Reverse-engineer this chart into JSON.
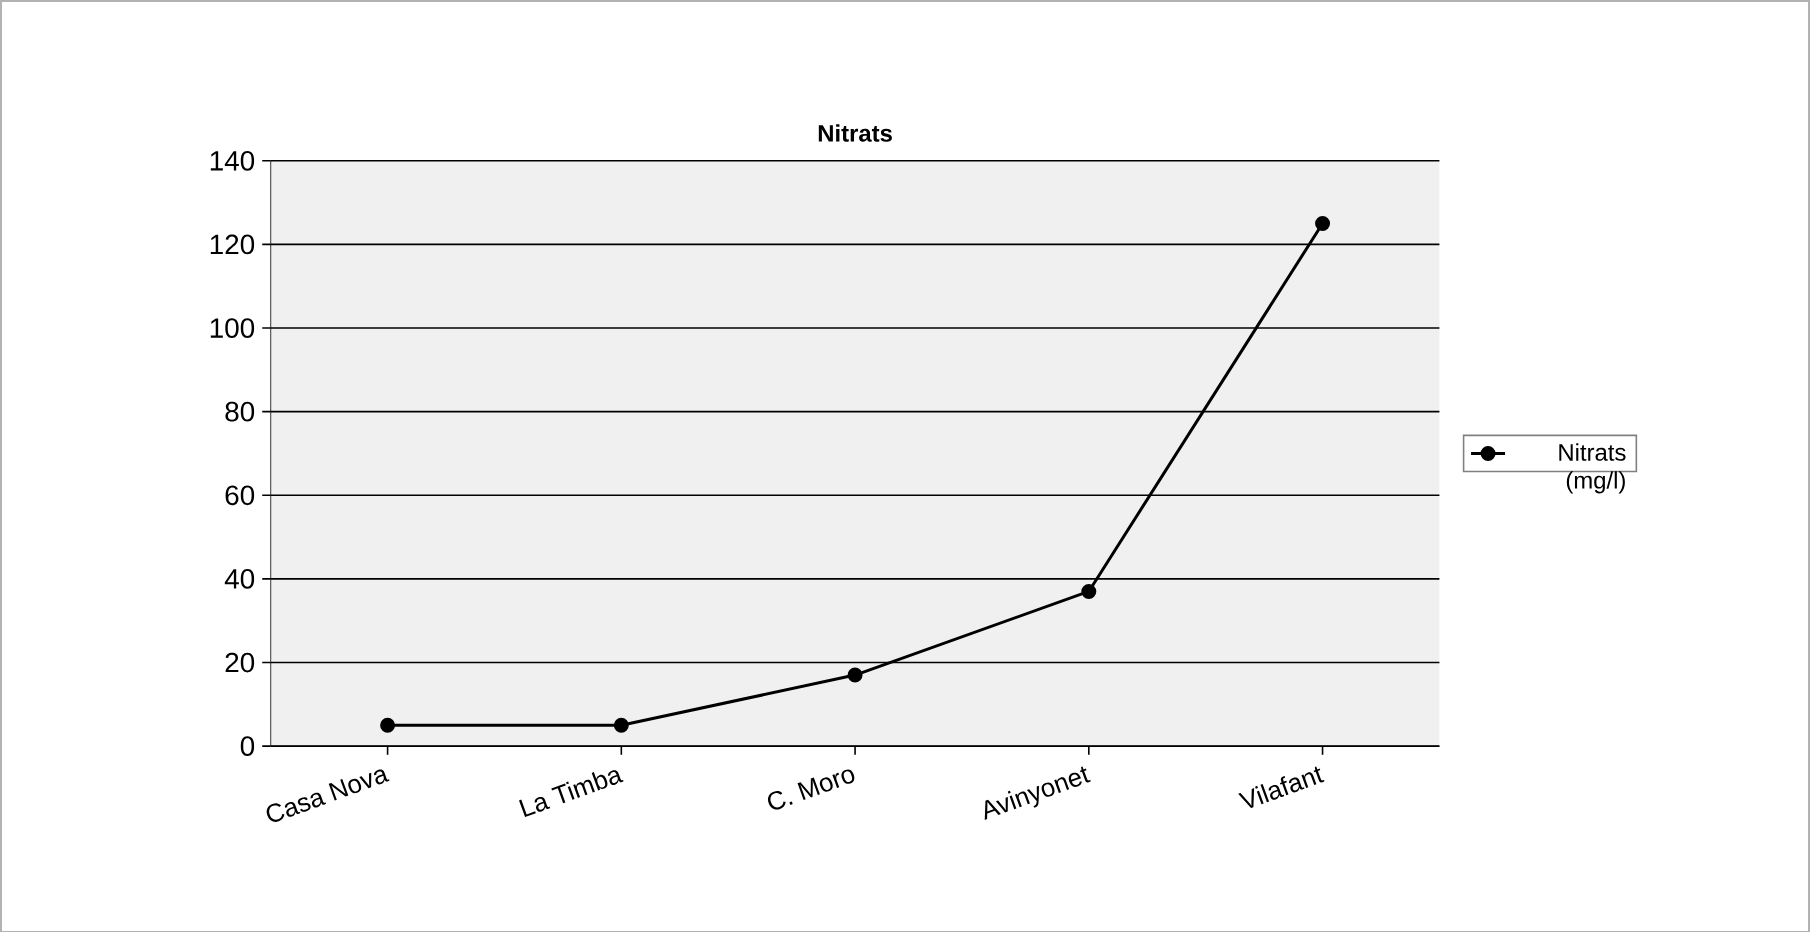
{
  "chart_data": {
    "type": "line",
    "title": "Nitrats",
    "categories": [
      "Casa Nova",
      "La Timba",
      "C. Moro",
      "Avinyonet",
      "Vilafant"
    ],
    "series": [
      {
        "name": "Nitrats (mg/l)",
        "color": "#000000",
        "values": [
          5,
          5,
          17,
          37,
          125
        ]
      }
    ],
    "ylim": [
      0,
      140
    ],
    "yticks": [
      0,
      20,
      40,
      60,
      80,
      100,
      120,
      140
    ],
    "grid": "y",
    "legend": "right",
    "marker": "circle",
    "line_style": "solid"
  }
}
